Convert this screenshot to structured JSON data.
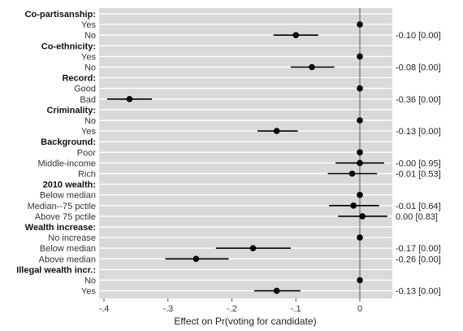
{
  "chart_data": {
    "type": "scatter",
    "subtype": "coefficient-plot",
    "xlabel": "Effect on Pr(voting for candidate)",
    "xlim": [
      -0.4,
      0.0
    ],
    "x_ticks": [
      "-.4",
      "-.3",
      "-.2",
      "-.1",
      "0"
    ],
    "x_tick_values": [
      -0.4,
      -0.3,
      -0.2,
      -0.1,
      0.0
    ],
    "reference_line": 0,
    "grid": true,
    "colors": {
      "panel": "#d9d9d9",
      "point": "#000000",
      "ref_line": "#555555"
    },
    "rows": [
      {
        "label": "Co-partisanship:",
        "header": true
      },
      {
        "label": "Yes",
        "est": 0.0,
        "lo": 0.0,
        "hi": 0.0
      },
      {
        "label": "No",
        "est": -0.1,
        "lo": -0.135,
        "hi": -0.065,
        "annotation": "-0.10 [0.00]"
      },
      {
        "label": "Co-ethnicity:",
        "header": true
      },
      {
        "label": "Yes",
        "est": 0.0,
        "lo": 0.0,
        "hi": 0.0
      },
      {
        "label": "No",
        "est": -0.075,
        "lo": -0.108,
        "hi": -0.04,
        "annotation": "-0.08 [0.00]"
      },
      {
        "label": "Record:",
        "header": true
      },
      {
        "label": "Good",
        "est": 0.0,
        "lo": 0.0,
        "hi": 0.0
      },
      {
        "label": "Bad",
        "est": -0.36,
        "lo": -0.395,
        "hi": -0.325,
        "annotation": "-0.36 [0.00]"
      },
      {
        "label": "Criminality:",
        "header": true
      },
      {
        "label": "No",
        "est": 0.0,
        "lo": 0.0,
        "hi": 0.0
      },
      {
        "label": "Yes",
        "est": -0.13,
        "lo": -0.16,
        "hi": -0.097,
        "annotation": "-0.13 [0.00]"
      },
      {
        "label": "Background:",
        "header": true
      },
      {
        "label": "Poor",
        "est": 0.0,
        "lo": 0.0,
        "hi": 0.0
      },
      {
        "label": "Middle-income",
        "est": 0.0,
        "lo": -0.038,
        "hi": 0.038,
        "annotation": "-0.00 [0.95]"
      },
      {
        "label": "Rich",
        "est": -0.012,
        "lo": -0.05,
        "hi": 0.027,
        "annotation": "-0.01 [0.53]"
      },
      {
        "label": "2010 wealth:",
        "header": true
      },
      {
        "label": "Below median",
        "est": 0.0,
        "lo": 0.0,
        "hi": 0.0
      },
      {
        "label": "Median--75 pctile",
        "est": -0.01,
        "lo": -0.048,
        "hi": 0.03,
        "annotation": "-0.01 [0.64]"
      },
      {
        "label": "Above 75 pctile",
        "est": 0.004,
        "lo": -0.034,
        "hi": 0.043,
        "annotation": "0.00 [0.83]"
      },
      {
        "label": "Wealth increase:",
        "header": true
      },
      {
        "label": "No increase",
        "est": 0.0,
        "lo": 0.0,
        "hi": 0.0
      },
      {
        "label": "Below median",
        "est": -0.167,
        "lo": -0.225,
        "hi": -0.108,
        "annotation": "-0.17 [0.00]"
      },
      {
        "label": "Above median",
        "est": -0.256,
        "lo": -0.304,
        "hi": -0.205,
        "annotation": "-0.26 [0.00]"
      },
      {
        "label": "Illegal wealth incr.:",
        "header": true
      },
      {
        "label": "No",
        "est": 0.0,
        "lo": 0.0,
        "hi": 0.0
      },
      {
        "label": "Yes",
        "est": -0.13,
        "lo": -0.165,
        "hi": -0.093,
        "annotation": "-0.13 [0.00]"
      }
    ]
  }
}
